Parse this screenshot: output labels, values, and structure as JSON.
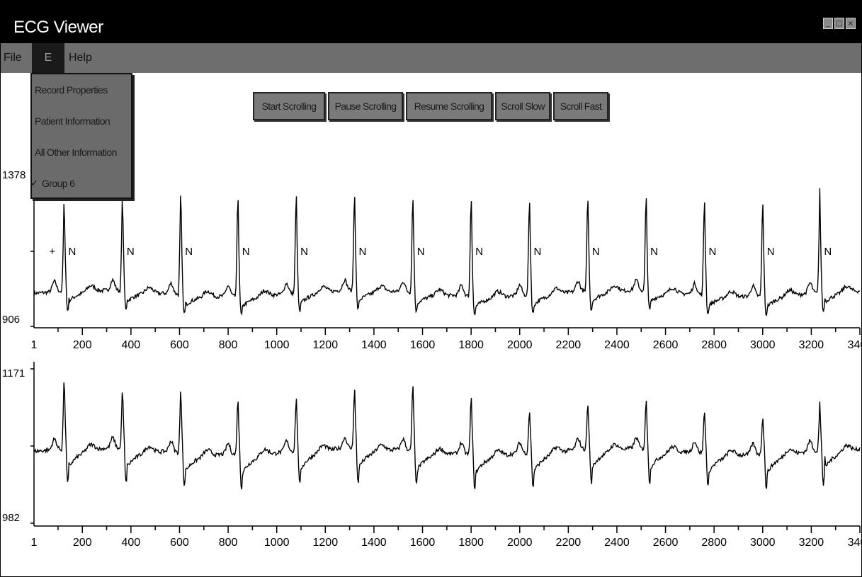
{
  "window": {
    "title": "ECG Viewer",
    "controls": [
      "_",
      "□",
      "×"
    ]
  },
  "menu": {
    "items": [
      "File",
      "E",
      "Help"
    ],
    "active_index": 1,
    "dropdown": [
      {
        "label": "Record Properties",
        "checked": false
      },
      {
        "label": "Patient Information",
        "checked": false
      },
      {
        "label": "All Other Information",
        "checked": false
      },
      {
        "label": "Group 6",
        "checked": true
      }
    ]
  },
  "toolbar": {
    "buttons": [
      "Start Scrolling",
      "Pause Scrolling",
      "Resume Scrolling",
      "Scroll Slow",
      "Scroll Fast"
    ]
  },
  "chart_data": [
    {
      "type": "line",
      "y_ticks": [
        "1378",
        "906"
      ],
      "ylim": [
        906,
        1378
      ],
      "x_ticks": [
        "1",
        "200",
        "400",
        "600",
        "800",
        "1000",
        "1200",
        "1400",
        "1600",
        "1800",
        "2000",
        "2200",
        "2400",
        "2600",
        "2800",
        "3000",
        "3200",
        "340"
      ],
      "xlim": [
        1,
        3400
      ],
      "beat_markers": [
        "+",
        "N",
        "N",
        "N",
        "N",
        "N",
        "N",
        "N",
        "N",
        "N",
        "N",
        "N",
        "N",
        "N",
        "N"
      ],
      "r_peaks_x": [
        125,
        365,
        605,
        840,
        1080,
        1320,
        1560,
        1800,
        2040,
        2280,
        2520,
        2760,
        3000,
        3235
      ],
      "r_peak_heights": [
        1330,
        1340,
        1372,
        1370,
        1366,
        1364,
        1360,
        1366,
        1358,
        1352,
        1350,
        1356,
        1350,
        1340
      ],
      "baseline": 1010,
      "trough": 955
    },
    {
      "type": "line",
      "y_ticks": [
        "1171",
        "982"
      ],
      "ylim": [
        982,
        1171
      ],
      "x_ticks": [
        "1",
        "200",
        "400",
        "600",
        "800",
        "1000",
        "1200",
        "1400",
        "1600",
        "1800",
        "2000",
        "2200",
        "2400",
        "2600",
        "2800",
        "3000",
        "3200",
        "340"
      ],
      "xlim": [
        1,
        3400
      ],
      "r_peaks_x": [
        125,
        365,
        605,
        840,
        1080,
        1320,
        1560,
        1800,
        2040,
        2280,
        2520,
        2760,
        3000,
        3235
      ],
      "r_peak_heights": [
        1168,
        1152,
        1156,
        1148,
        1146,
        1154,
        1164,
        1150,
        1130,
        1134,
        1138,
        1130,
        1124,
        1130
      ],
      "baseline": 1070,
      "trough": 1032
    }
  ]
}
